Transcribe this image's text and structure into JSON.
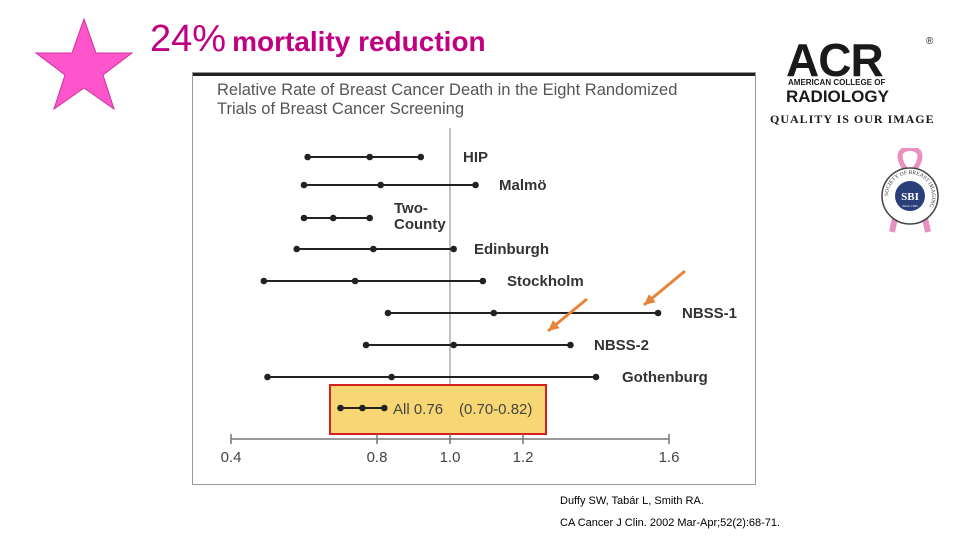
{
  "headline": {
    "percent": "24%",
    "text": "mortality reduction"
  },
  "colors": {
    "headline": "#c00080",
    "star": "#ff55cc",
    "arrow": "#e8843a",
    "highlight_fill": "#f7d774",
    "highlight_border": "#d42020",
    "line": "#222222"
  },
  "chart_data": {
    "type": "forest",
    "title_lines": [
      "Relative Rate of Breast Cancer Death in the Eight Randomized",
      "Trials of Breast Cancer Screening"
    ],
    "x_ticks": [
      0.4,
      0.8,
      1.0,
      1.2,
      1.6
    ],
    "x_range": [
      0.4,
      1.6
    ],
    "reference_line": 1.0,
    "trials": [
      {
        "label": "HIP",
        "estimate": 0.78,
        "low": 0.61,
        "high": 0.92
      },
      {
        "label": "Malmö",
        "estimate": 0.81,
        "low": 0.6,
        "high": 1.07
      },
      {
        "label_lines": [
          "Two-",
          "County"
        ],
        "estimate": 0.68,
        "low": 0.6,
        "high": 0.78
      },
      {
        "label": "Edinburgh",
        "estimate": 0.79,
        "low": 0.58,
        "high": 1.01
      },
      {
        "label": "Stockholm",
        "estimate": 0.74,
        "low": 0.49,
        "high": 1.09
      },
      {
        "label": "NBSS-1",
        "estimate": 1.12,
        "low": 0.83,
        "high": 1.57
      },
      {
        "label": "NBSS-2",
        "estimate": 1.01,
        "low": 0.77,
        "high": 1.33
      },
      {
        "label": "Gothenburg",
        "estimate": 0.84,
        "low": 0.5,
        "high": 1.4
      }
    ],
    "pooled": {
      "label": "All 0.76",
      "ci_label": "(0.70-0.82)",
      "estimate": 0.76,
      "low": 0.7,
      "high": 0.82
    }
  },
  "logos": {
    "acr_letters": "ACR",
    "acr_reg": "®",
    "acr_line1": "AMERICAN COLLEGE OF",
    "acr_line2": "RADIOLOGY",
    "acr_tagline": "QUALITY IS OUR IMAGE",
    "sbi_center": "SBI",
    "sbi_since": "Since 1985",
    "sbi_ring": "SOCIETY OF BREAST IMAGING"
  },
  "citation": {
    "line1": "Duffy SW, Tabár L, Smith RA.",
    "line2": "CA Cancer J Clin. 2002 Mar-Apr;52(2):68-71."
  }
}
